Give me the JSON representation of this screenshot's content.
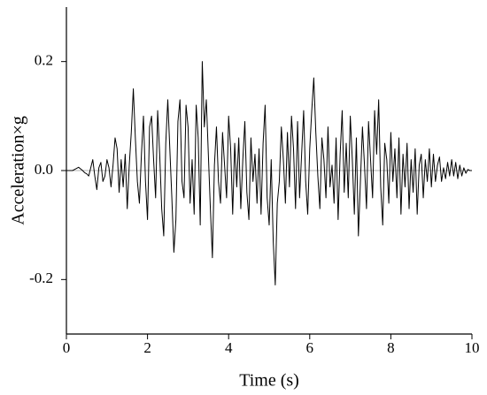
{
  "chart_data": {
    "type": "line",
    "xlabel": "Time (s)",
    "ylabel": "Acceleration×g",
    "color": "#000000",
    "zero_line": true,
    "xlim": [
      0,
      10
    ],
    "xticks": [
      0,
      2,
      4,
      6,
      8,
      10
    ],
    "ylim": [
      -0.3,
      0.3
    ],
    "yticks": [
      -0.2,
      {
        "value": 0,
        "label": "0.0"
      },
      0.2
    ],
    "x": [
      0,
      0.05,
      0.1,
      0.15,
      0.2,
      0.25,
      0.3,
      0.35,
      0.4,
      0.45,
      0.5,
      0.55,
      0.6,
      0.65,
      0.7,
      0.75,
      0.8,
      0.85,
      0.9,
      0.95,
      1,
      1.05,
      1.1,
      1.15,
      1.2,
      1.25,
      1.3,
      1.35,
      1.4,
      1.45,
      1.5,
      1.55,
      1.6,
      1.65,
      1.7,
      1.75,
      1.8,
      1.85,
      1.9,
      1.95,
      2,
      2.05,
      2.1,
      2.15,
      2.2,
      2.25,
      2.3,
      2.35,
      2.4,
      2.45,
      2.5,
      2.55,
      2.6,
      2.65,
      2.7,
      2.75,
      2.8,
      2.85,
      2.9,
      2.95,
      3,
      3.05,
      3.1,
      3.15,
      3.2,
      3.25,
      3.3,
      3.35,
      3.4,
      3.45,
      3.5,
      3.55,
      3.6,
      3.65,
      3.7,
      3.75,
      3.8,
      3.85,
      3.9,
      3.95,
      4,
      4.05,
      4.1,
      4.15,
      4.2,
      4.25,
      4.3,
      4.35,
      4.4,
      4.45,
      4.5,
      4.55,
      4.6,
      4.65,
      4.7,
      4.75,
      4.8,
      4.85,
      4.9,
      4.95,
      5,
      5.05,
      5.1,
      5.15,
      5.2,
      5.25,
      5.3,
      5.35,
      5.4,
      5.45,
      5.5,
      5.55,
      5.6,
      5.65,
      5.7,
      5.75,
      5.8,
      5.85,
      5.9,
      5.95,
      6,
      6.05,
      6.1,
      6.15,
      6.2,
      6.25,
      6.3,
      6.35,
      6.4,
      6.45,
      6.5,
      6.55,
      6.6,
      6.65,
      6.7,
      6.75,
      6.8,
      6.85,
      6.9,
      6.95,
      7,
      7.05,
      7.1,
      7.15,
      7.2,
      7.25,
      7.3,
      7.35,
      7.4,
      7.45,
      7.5,
      7.55,
      7.6,
      7.65,
      7.7,
      7.75,
      7.8,
      7.85,
      7.9,
      7.95,
      8,
      8.05,
      8.1,
      8.15,
      8.2,
      8.25,
      8.3,
      8.35,
      8.4,
      8.45,
      8.5,
      8.55,
      8.6,
      8.65,
      8.7,
      8.75,
      8.8,
      8.85,
      8.9,
      8.95,
      9,
      9.05,
      9.1,
      9.15,
      9.2,
      9.25,
      9.3,
      9.35,
      9.4,
      9.45,
      9.5,
      9.55,
      9.6,
      9.65,
      9.7,
      9.75,
      9.8,
      9.85,
      9.9,
      9.95,
      10
    ],
    "values": [
      0,
      0,
      0,
      0,
      0.002,
      0.004,
      0.006,
      0.003,
      0,
      -0.004,
      -0.006,
      -0.01,
      0.005,
      0.02,
      -0.01,
      -0.035,
      0.005,
      0.015,
      -0.02,
      -0.01,
      0.02,
      0.005,
      -0.03,
      0.01,
      0.06,
      0.04,
      -0.04,
      0.02,
      -0.03,
      0.03,
      -0.07,
      0.01,
      0.07,
      0.15,
      0.06,
      -0.02,
      -0.06,
      0.03,
      0.1,
      -0.02,
      -0.09,
      0.08,
      0.1,
      0.02,
      -0.05,
      0.11,
      0.03,
      -0.07,
      -0.12,
      0.05,
      0.13,
      0.04,
      -0.05,
      -0.15,
      -0.09,
      0.09,
      0.13,
      -0.02,
      -0.05,
      0.12,
      0.08,
      -0.06,
      0.02,
      -0.08,
      0.12,
      0.06,
      -0.1,
      0.2,
      0.08,
      0.13,
      0.03,
      -0.07,
      -0.16,
      0.01,
      0.08,
      -0.02,
      -0.06,
      0.07,
      0.01,
      -0.05,
      0.1,
      0.04,
      -0.08,
      0.05,
      -0.03,
      0.06,
      -0.07,
      0.02,
      0.09,
      -0.04,
      -0.09,
      0.06,
      -0.02,
      0.03,
      -0.06,
      0.04,
      -0.08,
      0.05,
      0.12,
      -0.05,
      -0.1,
      0.02,
      -0.13,
      -0.21,
      -0.06,
      -0.02,
      0.08,
      0.02,
      -0.06,
      0.07,
      -0.03,
      0.1,
      0.04,
      -0.07,
      0.09,
      -0.05,
      0.03,
      0.11,
      -0.02,
      -0.08,
      0.04,
      0.11,
      0.17,
      0.07,
      -0.01,
      -0.07,
      0.06,
      0.02,
      -0.05,
      0.08,
      -0.03,
      0.01,
      -0.06,
      0.06,
      -0.09,
      0.03,
      0.11,
      -0.04,
      0.05,
      -0.05,
      0.1,
      0.02,
      -0.08,
      0.06,
      -0.12,
      -0.02,
      0.08,
      0.01,
      -0.07,
      0.09,
      0.02,
      -0.05,
      0.11,
      0.03,
      0.13,
      -0.03,
      -0.1,
      0.05,
      0.02,
      -0.06,
      0.07,
      -0.02,
      0.04,
      -0.05,
      0.06,
      -0.08,
      0.03,
      -0.03,
      0.05,
      -0.07,
      0.02,
      -0.04,
      0.04,
      -0.08,
      0.01,
      0.03,
      -0.05,
      0.02,
      -0.02,
      0.04,
      -0.03,
      0.03,
      -0.02,
      0.01,
      0.025,
      -0.02,
      0.005,
      -0.015,
      0.015,
      -0.01,
      0.02,
      -0.01,
      0.015,
      -0.015,
      0.01,
      -0.01,
      0.005,
      -0.005,
      0.002,
      0,
      0
    ]
  }
}
